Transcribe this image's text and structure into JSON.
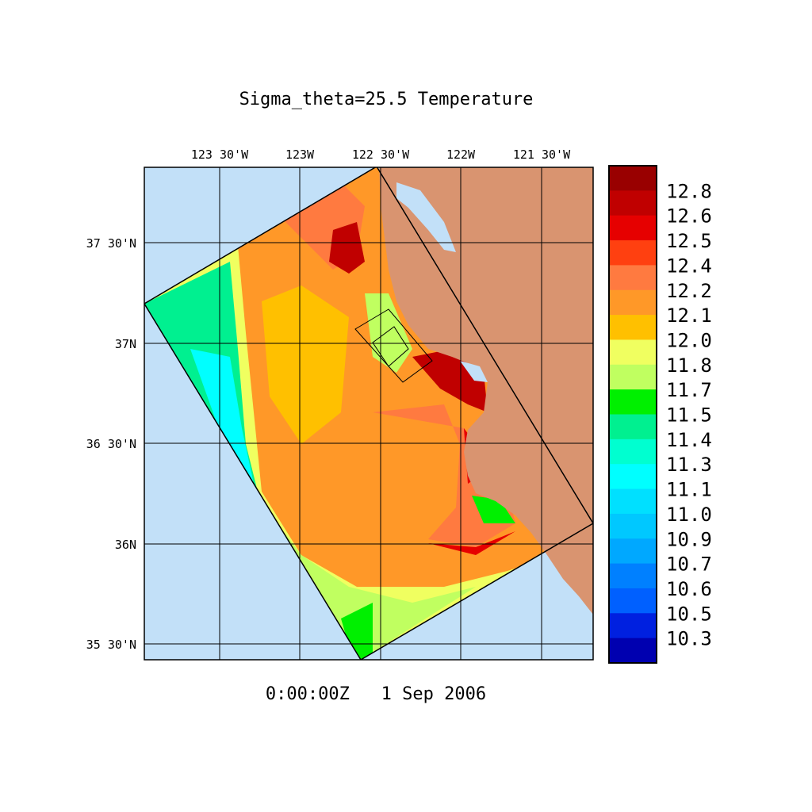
{
  "chart_data": {
    "type": "heatmap",
    "title": "Sigma_theta=25.5 Temperature",
    "timestamp": "0:00:00Z   1 Sep 2006",
    "x_tick_labels": [
      "123 30'W",
      "123W",
      "122 30'W",
      "122W",
      "121 30'W"
    ],
    "y_tick_labels": [
      "37 30'N",
      "37N",
      "36 30'N",
      "36N",
      "35 30'N"
    ],
    "x_ticks": [
      -123.5,
      -123.0,
      -122.5,
      -122.0,
      -121.5
    ],
    "y_ticks": [
      37.5,
      37.0,
      36.5,
      36.0,
      35.5
    ],
    "grid": true,
    "legend": "right colorbar",
    "colorbar": {
      "levels": [
        "12.8",
        "12.6",
        "12.5",
        "12.4",
        "12.2",
        "12.1",
        "12.0",
        "11.8",
        "11.7",
        "11.5",
        "11.4",
        "11.3",
        "11.1",
        "11.0",
        "10.9",
        "10.7",
        "10.6",
        "10.5",
        "10.3"
      ],
      "colors": [
        "#990000",
        "#c00000",
        "#e60000",
        "#ff4010",
        "#ff7a40",
        "#ff9828",
        "#ffc000",
        "#f0ff60",
        "#c0ff60",
        "#00f000",
        "#00f090",
        "#00ffd0",
        "#00ffff",
        "#00e0ff",
        "#00c8ff",
        "#00a8ff",
        "#0080ff",
        "#0060ff",
        "#0020e0",
        "#0000b0"
      ]
    },
    "land_color": "#d99470",
    "ocean_color": "#c2e0f8"
  }
}
